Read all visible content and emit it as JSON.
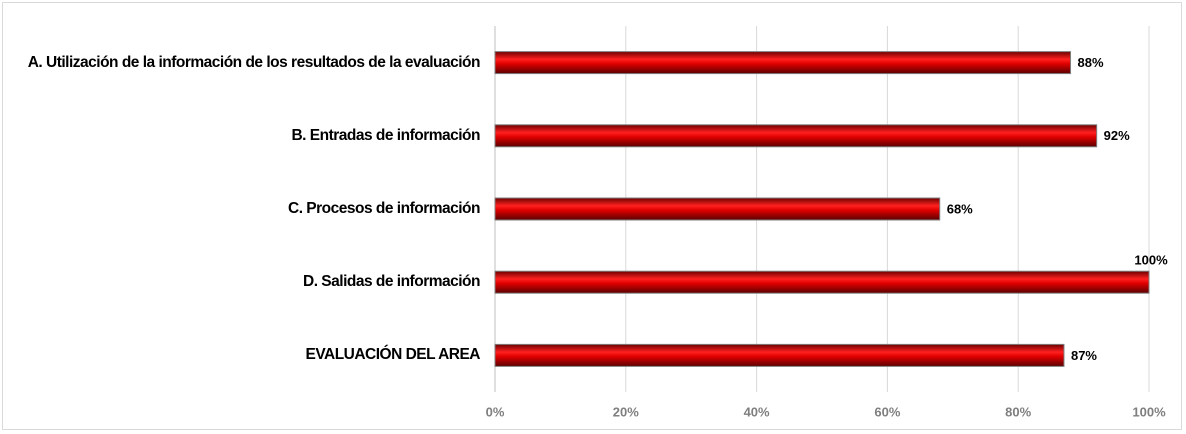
{
  "chart_data": {
    "type": "bar",
    "orientation": "horizontal",
    "categories": [
      "A.  Utilización de la información de los resultados de la evaluación",
      "B.   Entradas de información",
      "C.   Procesos de información",
      "D.  Salidas de información",
      "EVALUACIÓN DEL AREA"
    ],
    "values": [
      88,
      92,
      68,
      100,
      87
    ],
    "value_labels": [
      "88%",
      "92%",
      "68%",
      "100%",
      "87%"
    ],
    "color": "#c00000",
    "xlim": [
      0,
      100
    ],
    "xticks": [
      {
        "value": 0,
        "label": "0%"
      },
      {
        "value": 20,
        "label": "20%"
      },
      {
        "value": 40,
        "label": "40%"
      },
      {
        "value": 60,
        "label": "60%"
      },
      {
        "value": 80,
        "label": "80%"
      },
      {
        "value": 100,
        "label": "100%"
      }
    ],
    "grid": true
  }
}
